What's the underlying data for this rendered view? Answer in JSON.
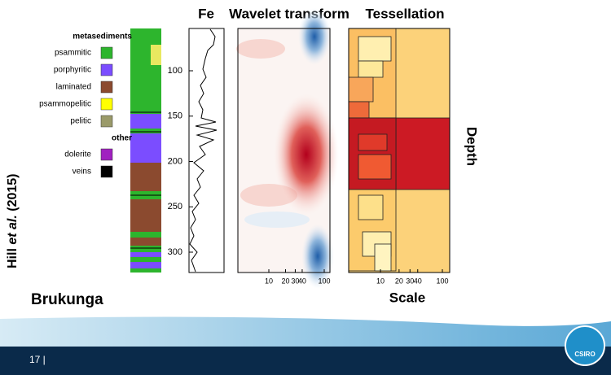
{
  "header": {
    "panel_titles": [
      "Fe",
      "Wavelet transform",
      "Tessellation"
    ]
  },
  "legend": {
    "groups": [
      {
        "title": "metasediments",
        "items": [
          {
            "label": "psammitic",
            "color": "#2db52d"
          },
          {
            "label": "porphyritic",
            "color": "#7b4dff"
          },
          {
            "label": "laminated",
            "color": "#8b4a2f"
          },
          {
            "label": "psammopelitic",
            "color": "#ffff00"
          },
          {
            "label": "pelitic",
            "color": "#9a9a6a"
          }
        ]
      },
      {
        "title": "other",
        "items": [
          {
            "label": "dolerite",
            "color": "#a020c0"
          },
          {
            "label": "veins",
            "color": "#000000"
          }
        ]
      }
    ]
  },
  "depth_ticks": [
    100,
    150,
    200,
    250,
    300
  ],
  "scale_ticks": [
    10,
    20,
    30,
    40,
    100
  ],
  "axis_labels": {
    "scale": "Scale",
    "depth": "Depth"
  },
  "site": "Brukunga",
  "citation": {
    "author": "Hill",
    "etal": "et al.",
    "year": "(2015)"
  },
  "footer": {
    "slide_number": "17 |",
    "logo": "CSIRO"
  }
}
